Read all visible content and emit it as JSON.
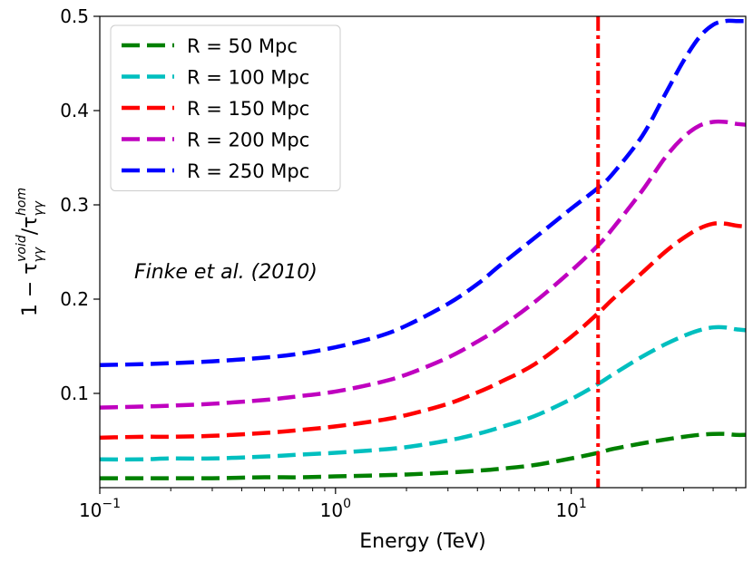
{
  "chart_data": {
    "type": "line",
    "xscale": "log",
    "xlim": [
      0.1,
      55
    ],
    "ylim": [
      0.0,
      0.5
    ],
    "xlabel": "Energy (TeV)",
    "ylabel_parts": {
      "lead": "1 − τ",
      "sub1": "γγ",
      "sup1": "void",
      "mid": "/τ",
      "sub2": "γγ",
      "sup2": "hom"
    },
    "x_ticks": [
      {
        "value": 0.1,
        "base": "10",
        "exp": "−1"
      },
      {
        "value": 1,
        "base": "10",
        "exp": "0"
      },
      {
        "value": 10,
        "base": "10",
        "exp": "1"
      }
    ],
    "y_ticks": [
      {
        "value": 0.1,
        "label": "0.1"
      },
      {
        "value": 0.2,
        "label": "0.2"
      },
      {
        "value": 0.3,
        "label": "0.3"
      },
      {
        "value": 0.4,
        "label": "0.4"
      },
      {
        "value": 0.5,
        "label": "0.5"
      }
    ],
    "x": [
      0.1,
      0.15,
      0.2,
      0.3,
      0.5,
      0.7,
      1,
      1.5,
      2,
      3,
      4,
      5,
      7,
      10,
      13,
      15,
      20,
      25,
      30,
      35,
      40,
      45,
      50,
      55
    ],
    "series": [
      {
        "name": "R = 50 Mpc",
        "color": "#008000",
        "values": [
          0.01,
          0.01,
          0.01,
          0.01,
          0.011,
          0.011,
          0.012,
          0.013,
          0.014,
          0.016,
          0.018,
          0.02,
          0.024,
          0.031,
          0.037,
          0.041,
          0.047,
          0.051,
          0.054,
          0.056,
          0.057,
          0.057,
          0.056,
          0.056
        ]
      },
      {
        "name": "R = 100 Mpc",
        "color": "#00BFBF",
        "values": [
          0.03,
          0.03,
          0.031,
          0.031,
          0.033,
          0.035,
          0.037,
          0.04,
          0.043,
          0.05,
          0.057,
          0.064,
          0.076,
          0.094,
          0.11,
          0.12,
          0.139,
          0.152,
          0.161,
          0.167,
          0.17,
          0.17,
          0.168,
          0.167
        ]
      },
      {
        "name": "R = 150 Mpc",
        "color": "#FF0000",
        "values": [
          0.053,
          0.054,
          0.054,
          0.055,
          0.058,
          0.061,
          0.065,
          0.071,
          0.077,
          0.089,
          0.101,
          0.112,
          0.131,
          0.16,
          0.185,
          0.2,
          0.228,
          0.25,
          0.265,
          0.275,
          0.28,
          0.28,
          0.278,
          0.277
        ]
      },
      {
        "name": "R = 200 Mpc",
        "color": "#BF00BF",
        "values": [
          0.085,
          0.086,
          0.087,
          0.089,
          0.093,
          0.097,
          0.102,
          0.111,
          0.12,
          0.138,
          0.155,
          0.17,
          0.197,
          0.23,
          0.257,
          0.275,
          0.315,
          0.35,
          0.372,
          0.384,
          0.388,
          0.388,
          0.386,
          0.385
        ]
      },
      {
        "name": "R = 250 Mpc",
        "color": "#0000FF",
        "values": [
          0.13,
          0.131,
          0.132,
          0.134,
          0.138,
          0.142,
          0.149,
          0.16,
          0.172,
          0.195,
          0.216,
          0.236,
          0.265,
          0.296,
          0.318,
          0.333,
          0.373,
          0.417,
          0.453,
          0.478,
          0.491,
          0.495,
          0.495,
          0.495
        ]
      }
    ],
    "vline": {
      "x": 13,
      "color": "#FF0000",
      "style": "dash-dot"
    },
    "annotation": {
      "text": "Finke et al. (2010)",
      "x": 0.14,
      "y": 0.23
    },
    "legend": {
      "location": "upper-left"
    },
    "grid": false
  }
}
